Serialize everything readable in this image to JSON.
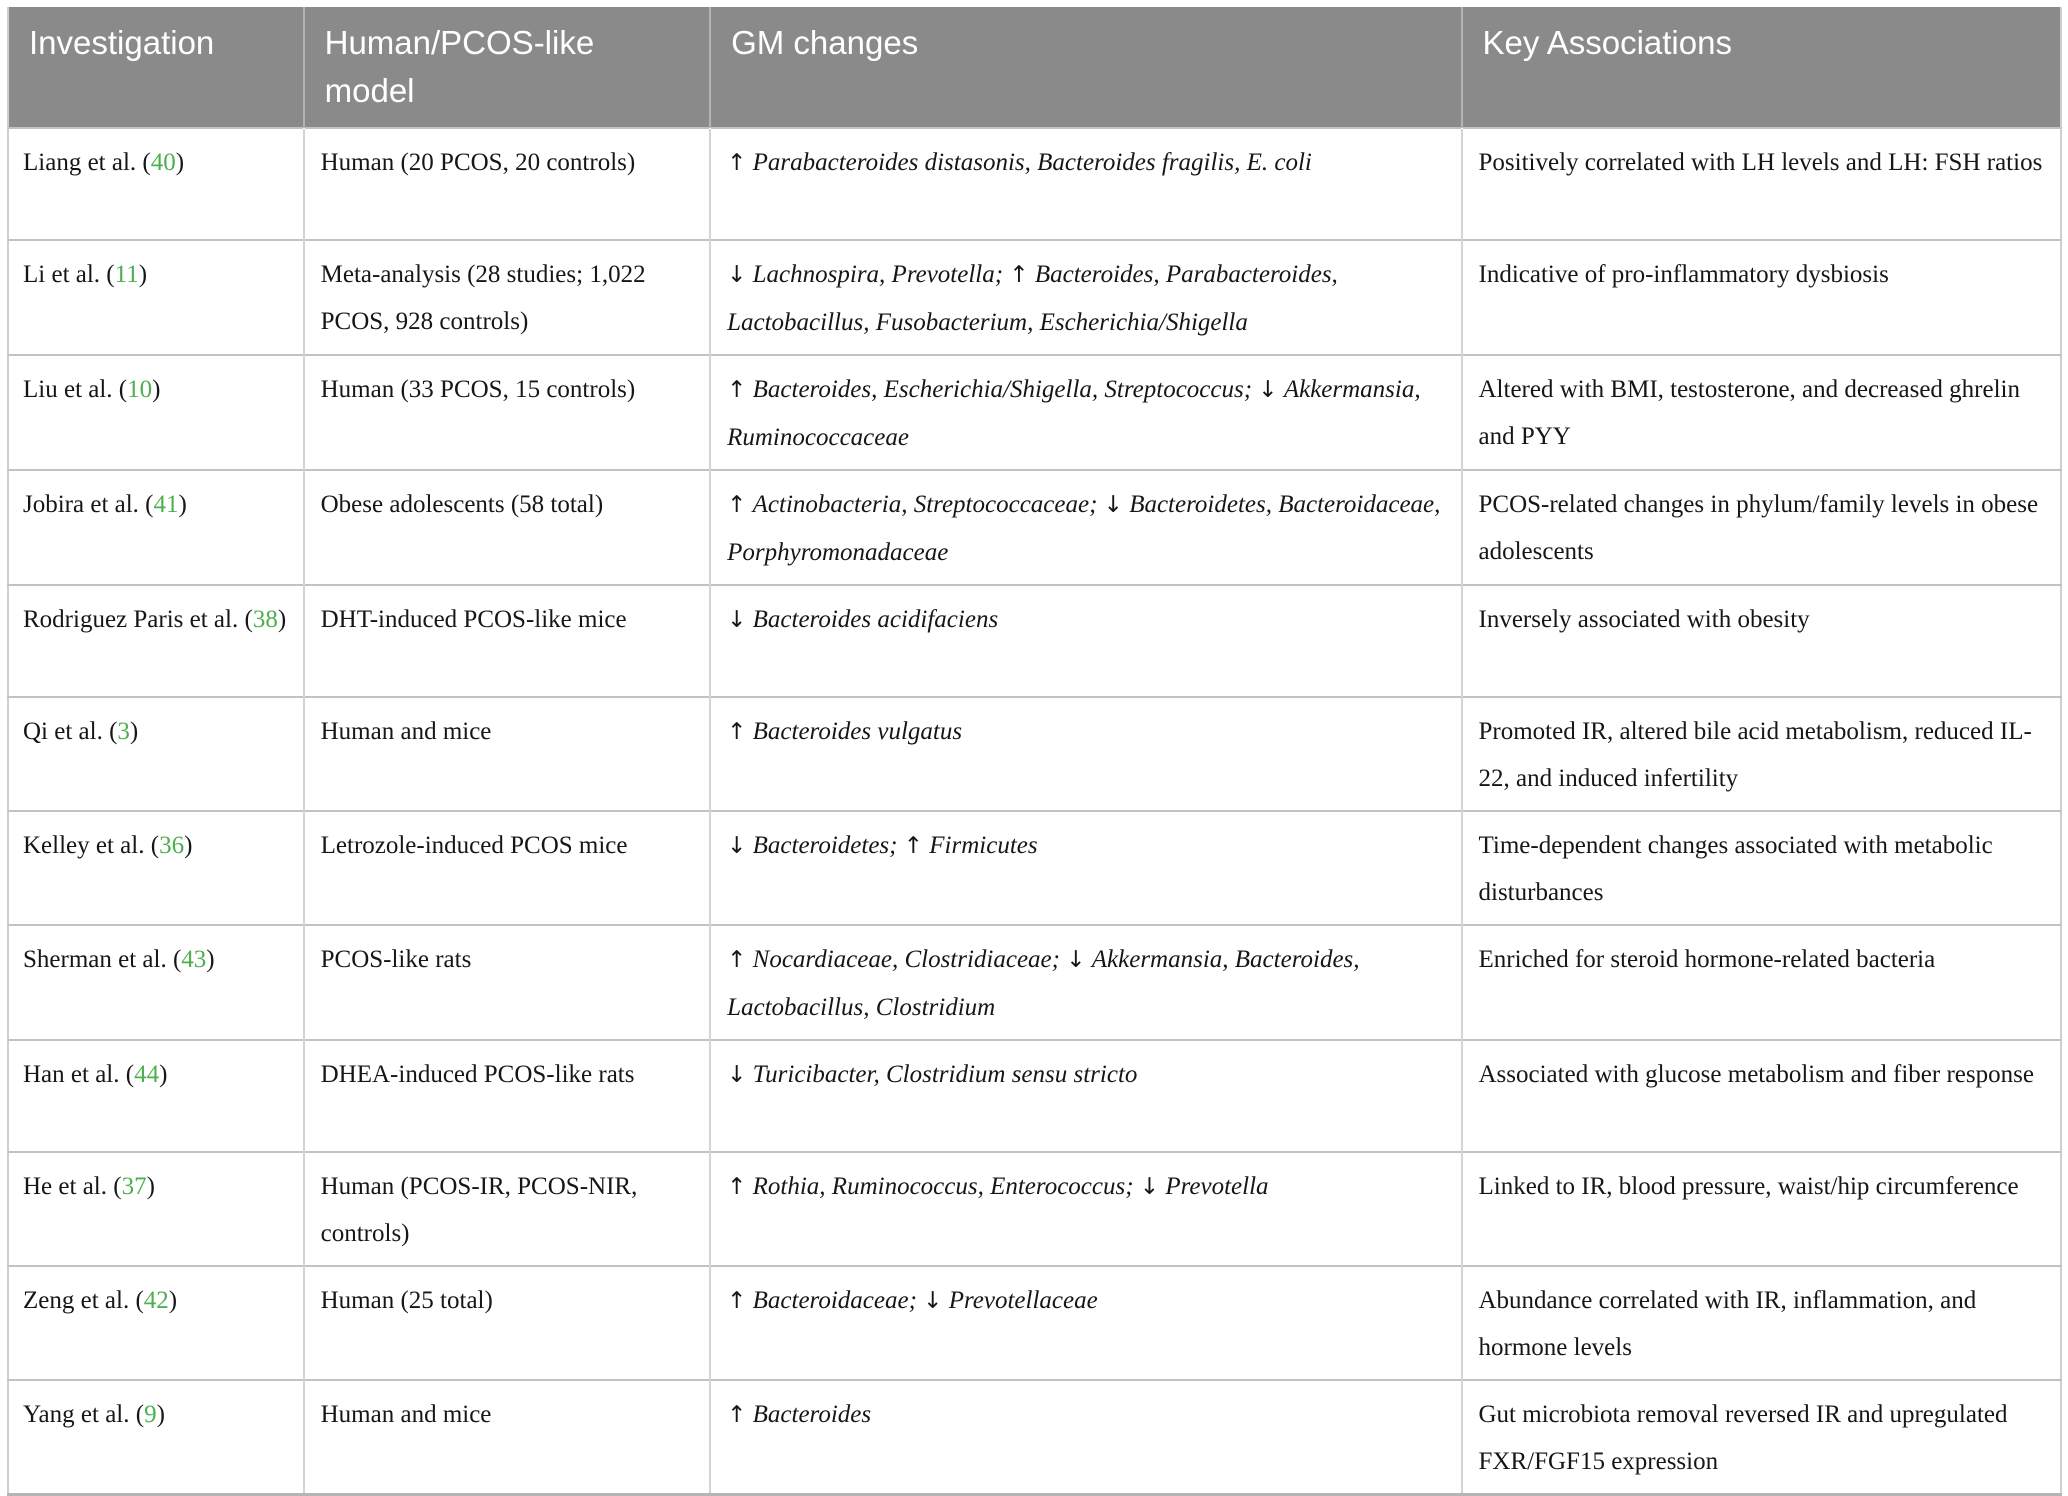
{
  "icons": {
    "up_arrow": "↑",
    "down_arrow": "↓"
  },
  "colors": {
    "header_background": "#8a8a8a",
    "header_text": "#ffffff",
    "citation_green": "#4caf50",
    "body_text": "#161616",
    "grid_line": "#c2c2c2"
  },
  "table": {
    "columns": [
      {
        "label": "Investigation"
      },
      {
        "label": "Human/PCOS-like model"
      },
      {
        "label": "GM changes"
      },
      {
        "label": "Key Associations"
      }
    ],
    "rows": [
      {
        "investigation": "Liang et al.",
        "ref": "40",
        "model": "Human (20 PCOS, 20 controls)",
        "gm_changes": [
          {
            "direction": "up",
            "taxa": "Parabacteroides distasonis, Bacteroides fragilis, E. coli"
          }
        ],
        "key_association": "Positively correlated with LH levels and LH: FSH ratios"
      },
      {
        "investigation": "Li et al.",
        "ref": "11",
        "model": "Meta-analysis (28 studies; 1,022 PCOS, 928 controls)",
        "gm_changes": [
          {
            "direction": "down",
            "taxa": "Lachnospira, Prevotella;"
          },
          {
            "direction": "up",
            "taxa": "Bacteroides, Parabacteroides, Lactobacillus, Fusobacterium, Escherichia/Shigella"
          }
        ],
        "key_association": "Indicative of pro-inflammatory dysbiosis"
      },
      {
        "investigation": "Liu et al.",
        "ref": "10",
        "model": "Human (33 PCOS, 15 controls)",
        "gm_changes": [
          {
            "direction": "up",
            "taxa": "Bacteroides, Escherichia/Shigella, Streptococcus;"
          },
          {
            "direction": "down",
            "taxa": "Akkermansia, Ruminococcaceae"
          }
        ],
        "key_association": "Altered with BMI, testosterone, and decreased ghrelin and PYY"
      },
      {
        "investigation": "Jobira et al.",
        "ref": "41",
        "model": "Obese adolescents (58 total)",
        "gm_changes": [
          {
            "direction": "up",
            "taxa": "Actinobacteria, Streptococcaceae;"
          },
          {
            "direction": "down",
            "taxa": "Bacteroidetes, Bacteroidaceae, Porphyromonadaceae"
          }
        ],
        "key_association": "PCOS-related changes in phylum/family levels in obese adolescents"
      },
      {
        "investigation": "Rodriguez Paris et al.",
        "ref": "38",
        "model": "DHT-induced PCOS-like mice",
        "gm_changes": [
          {
            "direction": "down",
            "taxa": "Bacteroides acidifaciens"
          }
        ],
        "key_association": "Inversely associated with obesity"
      },
      {
        "investigation": "Qi et al.",
        "ref": "3",
        "model": "Human and mice",
        "gm_changes": [
          {
            "direction": "up",
            "taxa": "Bacteroides vulgatus"
          }
        ],
        "key_association": "Promoted IR, altered bile acid metabolism, reduced IL-22, and induced infertility"
      },
      {
        "investigation": "Kelley et al.",
        "ref": "36",
        "model": "Letrozole-induced PCOS mice",
        "gm_changes": [
          {
            "direction": "down",
            "taxa": "Bacteroidetes;"
          },
          {
            "direction": "up",
            "taxa": "Firmicutes"
          }
        ],
        "key_association": "Time-dependent changes associated with metabolic disturbances"
      },
      {
        "investigation": "Sherman et al.",
        "ref": "43",
        "model": "PCOS-like rats",
        "gm_changes": [
          {
            "direction": "up",
            "taxa": "Nocardiaceae, Clostridiaceae;"
          },
          {
            "direction": "down",
            "taxa": "Akkermansia, Bacteroides, Lactobacillus, Clostridium"
          }
        ],
        "key_association": "Enriched for steroid hormone-related bacteria"
      },
      {
        "investigation": "Han et al.",
        "ref": "44",
        "model": "DHEA-induced PCOS-like rats",
        "gm_changes": [
          {
            "direction": "down",
            "taxa": "Turicibacter, Clostridium sensu stricto"
          }
        ],
        "key_association": "Associated with glucose metabolism and fiber response"
      },
      {
        "investigation": "He et al.",
        "ref": "37",
        "model": "Human (PCOS-IR, PCOS-NIR, controls)",
        "gm_changes": [
          {
            "direction": "up",
            "taxa": "Rothia, Ruminococcus, Enterococcus;"
          },
          {
            "direction": "down",
            "taxa": "Prevotella"
          }
        ],
        "key_association": "Linked to IR, blood pressure, waist/hip circumference"
      },
      {
        "investigation": "Zeng et al.",
        "ref": "42",
        "model": "Human (25 total)",
        "gm_changes": [
          {
            "direction": "up",
            "taxa": "Bacteroidaceae;"
          },
          {
            "direction": "down",
            "taxa": "Prevotellaceae"
          }
        ],
        "key_association": "Abundance correlated with IR, inflammation, and hormone levels"
      },
      {
        "investigation": "Yang et al.",
        "ref": "9",
        "model": "Human and mice",
        "gm_changes": [
          {
            "direction": "up",
            "taxa": "Bacteroides"
          }
        ],
        "key_association": "Gut microbiota removal reversed IR and upregulated FXR/FGF15 expression"
      }
    ]
  }
}
